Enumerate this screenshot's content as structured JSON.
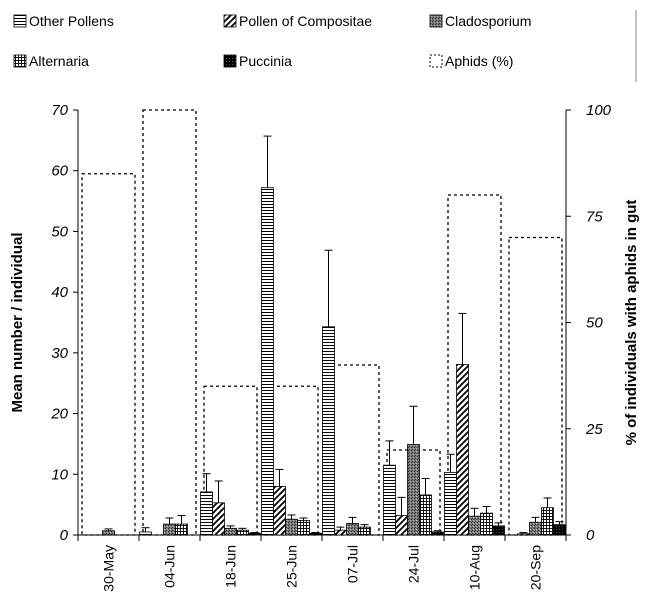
{
  "chart_data": {
    "type": "bar",
    "categories": [
      "30-May",
      "04-Jun",
      "18-Jun",
      "25-Jun",
      "07-Jul",
      "24-Jul",
      "10-Aug",
      "20-Sep"
    ],
    "ylabel": "Mean number / individual",
    "y2label": "% of individuals with aphids in gut",
    "ylim": [
      0,
      70
    ],
    "y2lim": [
      0,
      100
    ],
    "yticks": [
      0,
      10,
      20,
      30,
      40,
      50,
      60,
      70
    ],
    "y2ticks": [
      0,
      25,
      50,
      75,
      100
    ],
    "legend_position": "top",
    "grid": false,
    "series": [
      {
        "name": "Other Pollens",
        "axis": "left",
        "pattern": "hlines",
        "values": [
          0,
          0.5,
          7.1,
          57.2,
          34.3,
          11.5,
          10.3,
          0
        ],
        "errors": [
          0,
          0.7,
          3.0,
          8.5,
          12.6,
          4.0,
          3.0,
          0
        ]
      },
      {
        "name": "Pollen of Compositae",
        "axis": "left",
        "pattern": "diag",
        "values": [
          0,
          0,
          5.3,
          8.0,
          0.8,
          3.2,
          28.1,
          0.2
        ],
        "errors": [
          0,
          0,
          3.6,
          2.8,
          0.5,
          3.0,
          8.4,
          0.2
        ]
      },
      {
        "name": "Cladosporium",
        "axis": "left",
        "pattern": "dark",
        "values": [
          0.7,
          1.8,
          1.1,
          2.6,
          1.9,
          14.9,
          3.1,
          2.1
        ],
        "errors": [
          0.3,
          1.0,
          0.4,
          0.7,
          1.0,
          6.3,
          1.3,
          0.8
        ]
      },
      {
        "name": "Alternaria",
        "axis": "left",
        "pattern": "grid",
        "values": [
          0,
          1.8,
          0.8,
          2.4,
          1.3,
          6.6,
          3.6,
          4.5
        ],
        "errors": [
          0,
          1.4,
          0.3,
          0.4,
          0.4,
          2.7,
          1.1,
          1.6
        ]
      },
      {
        "name": "Puccinia",
        "axis": "left",
        "pattern": "black",
        "values": [
          0,
          0,
          0.3,
          0.3,
          0,
          0.5,
          1.5,
          1.7
        ],
        "errors": [
          0,
          0,
          0.1,
          0.1,
          0,
          0.2,
          0.5,
          0.5
        ]
      },
      {
        "name": "Aphids (%)",
        "axis": "right",
        "pattern": "dotted-outline",
        "values": [
          85,
          100,
          35,
          35,
          40,
          20,
          80,
          70
        ]
      }
    ]
  }
}
